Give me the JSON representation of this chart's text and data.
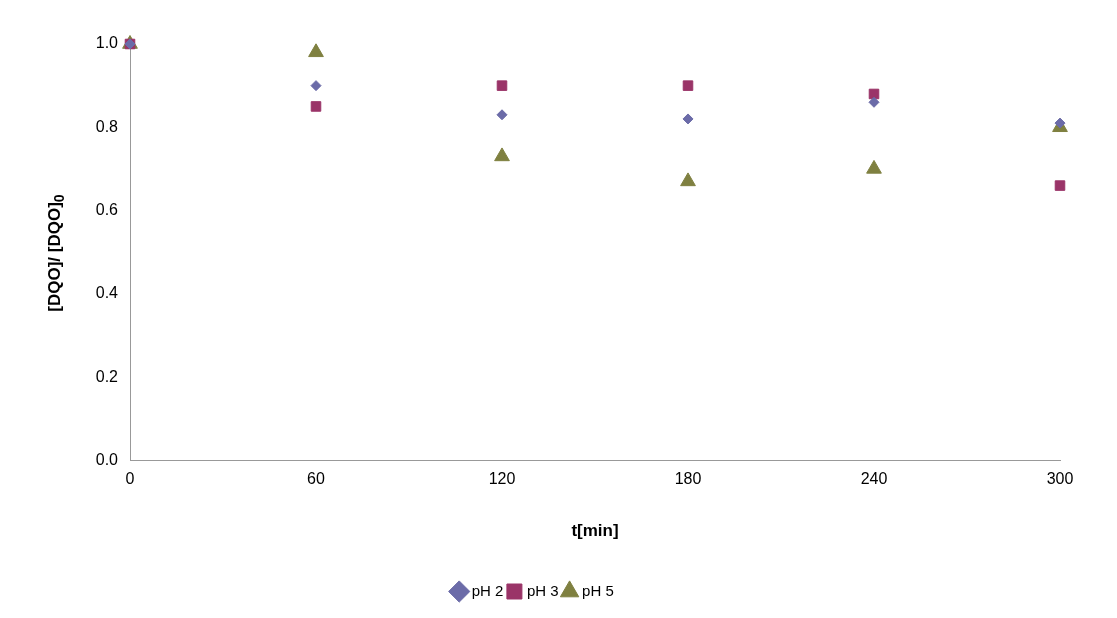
{
  "chart_data": {
    "type": "scatter",
    "xlabel": "t[min]",
    "ylabel": "[DQO]/ [DQO]$_{0}$",
    "x": [
      0,
      60,
      120,
      180,
      240,
      300
    ],
    "series": [
      {
        "name": "pH 2",
        "color": "#6b6ba8",
        "marker": "diamond",
        "values": [
          1.0,
          0.9,
          0.83,
          0.82,
          0.86,
          0.81
        ]
      },
      {
        "name": "pH 3",
        "color": "#9a3468",
        "marker": "square",
        "values": [
          1.0,
          0.85,
          0.9,
          0.9,
          0.88,
          0.66
        ]
      },
      {
        "name": "pH 5",
        "color": "#7f8040",
        "marker": "triangle",
        "values": [
          1.0,
          0.98,
          0.73,
          0.67,
          0.7,
          0.8
        ]
      }
    ],
    "xlim": [
      0,
      300
    ],
    "xticks": [
      0,
      60,
      120,
      180,
      240,
      300
    ],
    "ylim": [
      0,
      1.0
    ],
    "yticks": [
      {
        "value": 0,
        "label": "0.0"
      },
      {
        "value": 0.2,
        "label": "0.2"
      },
      {
        "value": 0.4,
        "label": "0.4"
      },
      {
        "value": 0.6,
        "label": "0.6"
      },
      {
        "value": 0.8,
        "label": "0.8"
      },
      {
        "value": 1.0,
        "label": "1.0"
      }
    ],
    "grid": false,
    "legend": "bottom"
  }
}
